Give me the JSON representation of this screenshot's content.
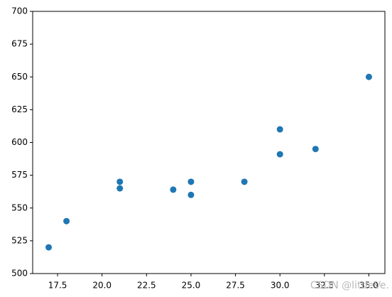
{
  "chart_data": {
    "type": "scatter",
    "x": [
      17,
      18,
      21,
      21,
      24,
      25,
      25,
      28,
      30,
      30,
      32,
      35
    ],
    "series": [
      {
        "color": "#1f77b4",
        "values": [
          520,
          540,
          570,
          565,
          564,
          570,
          560,
          570,
          610,
          591,
          595,
          650
        ]
      }
    ],
    "xlim": [
      16.1,
      35.9
    ],
    "xticks": [
      17.5,
      {
        "value": 20,
        "label": "20.0"
      },
      22.5,
      {
        "value": 25,
        "label": "25.0"
      },
      27.5,
      {
        "value": 30,
        "label": "30.0"
      },
      32.5,
      {
        "value": 35,
        "label": "35.0"
      }
    ],
    "ylim": [
      500,
      700
    ],
    "yticks": [
      500,
      525,
      550,
      575,
      600,
      625,
      650,
      675,
      700
    ],
    "grid": false,
    "watermark": "CSDN @littleVe."
  }
}
